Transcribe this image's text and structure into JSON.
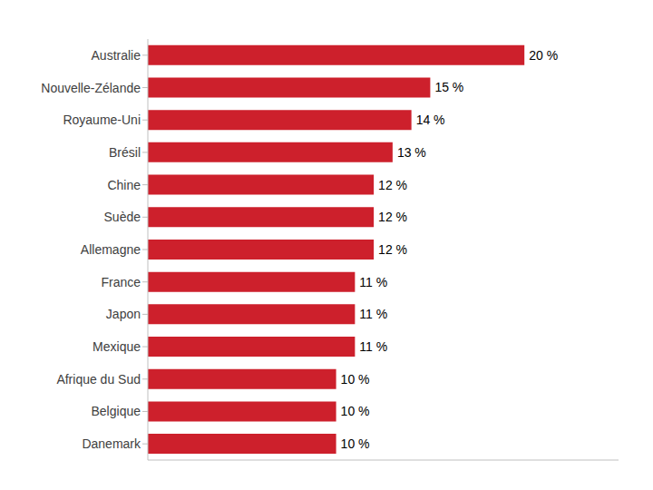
{
  "chart_data": {
    "type": "bar",
    "orientation": "horizontal",
    "categories": [
      "Australie",
      "Nouvelle-Zélande",
      "Royaume-Uni",
      "Brésil",
      "Chine",
      "Suède",
      "Allemagne",
      "France",
      "Japon",
      "Mexique",
      "Afrique du Sud",
      "Belgique",
      "Danemark"
    ],
    "values": [
      20,
      15,
      14,
      13,
      12,
      12,
      12,
      11,
      11,
      11,
      10,
      10,
      10
    ],
    "value_labels": [
      "20 %",
      "15 %",
      "14 %",
      "13 %",
      "12 %",
      "12 %",
      "12 %",
      "11 %",
      "11 %",
      "11 %",
      "10 %",
      "10 %",
      "10 %"
    ],
    "color": "#cd202c",
    "xlim": [
      0,
      25
    ],
    "grid": false,
    "data_labels": true,
    "tick_labels": "y"
  }
}
